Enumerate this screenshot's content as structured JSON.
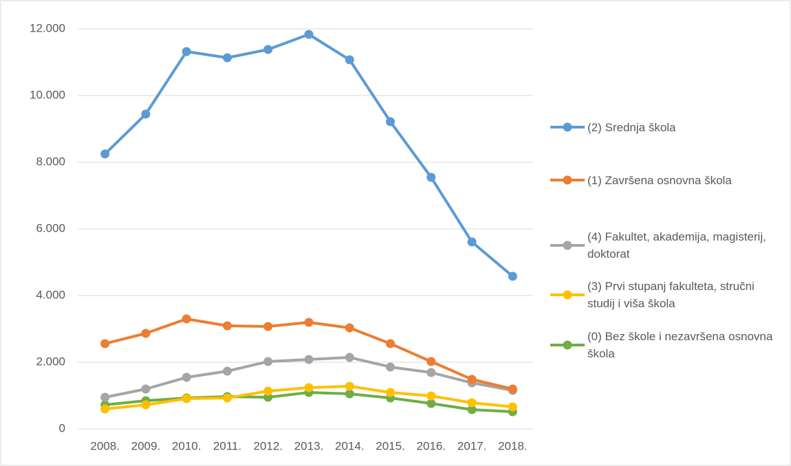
{
  "chart_data": {
    "type": "line",
    "categories": [
      "2008.",
      "2009.",
      "2010.",
      "2011.",
      "2012.",
      "2013.",
      "2014.",
      "2015.",
      "2016.",
      "2017.",
      "2018."
    ],
    "series": [
      {
        "name": "(2) Srednja škola",
        "color": "#5b9bd5",
        "values": [
          8247,
          9443,
          11320,
          11134,
          11381,
          11835,
          11072,
          9216,
          7546,
          5608,
          4577
        ]
      },
      {
        "name": "(1) Završena osnovna škola",
        "color": "#ed7d31",
        "values": [
          2557,
          2866,
          3299,
          3093,
          3072,
          3196,
          3031,
          2557,
          2021,
          1485,
          1196
        ]
      },
      {
        "name": "(4) Fakultet, akademija, magisterij, doktorat",
        "color": "#a5a5a5",
        "values": [
          948,
          1196,
          1546,
          1732,
          2021,
          2082,
          2144,
          1856,
          1691,
          1381,
          1155
        ]
      },
      {
        "name": "(3) Prvi stupanj fakulteta, stručni studij i viša škola",
        "color": "#ffc000",
        "values": [
          598,
          722,
          907,
          928,
          1134,
          1237,
          1278,
          1093,
          990,
          784,
          660
        ]
      },
      {
        "name": "(0) Bez škole i nezavršena osnovna škola",
        "color": "#70ad47",
        "values": [
          722,
          845,
          928,
          969,
          948,
          1093,
          1052,
          928,
          763,
          577,
          515
        ]
      }
    ],
    "ylim": [
      0,
      12000
    ],
    "yticks": [
      0,
      {
        "value": 2000,
        "label": "2.000"
      },
      {
        "value": 4000,
        "label": "4.000"
      },
      {
        "value": 6000,
        "label": "6.000"
      },
      {
        "value": 8000,
        "label": "8.000"
      },
      {
        "value": 10000,
        "label": "10.000"
      },
      {
        "value": 12000,
        "label": "12.000"
      }
    ],
    "grid": true,
    "legend": "right"
  }
}
